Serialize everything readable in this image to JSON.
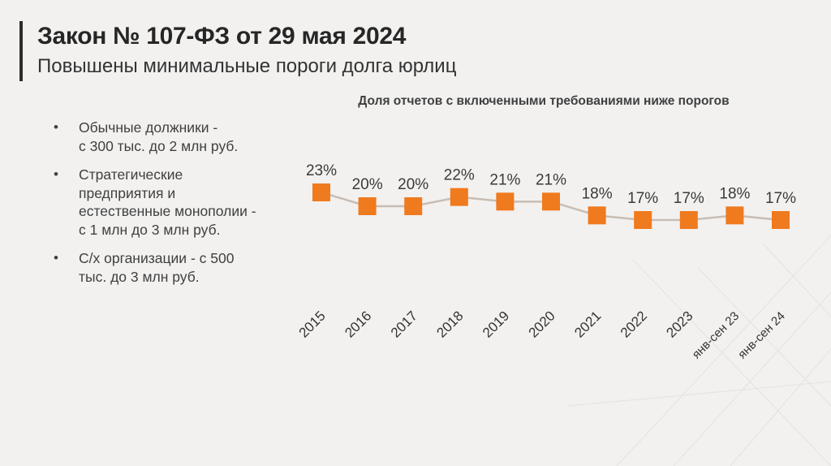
{
  "slide": {
    "title": "Закон № 107-ФЗ от 29 мая 2024",
    "subtitle": "Повышены минимальные пороги долга юрлиц"
  },
  "bullets": [
    "Обычные должники -\nс 300 тыс. до 2 млн руб.",
    "Стратегические\nпредприятия и\nестественные монополии -\nс 1 млн до 3 млн руб.",
    "С/х организации - с 500\nтыс. до 3 млн руб."
  ],
  "bullet_symbol": "•",
  "chart_data": {
    "type": "line",
    "title": "Доля отчетов с включенными требованиями ниже порогов",
    "categories": [
      "2015",
      "2016",
      "2017",
      "2018",
      "2019",
      "2020",
      "2021",
      "2022",
      "2023",
      "янв-сен 23",
      "янв-сен 24"
    ],
    "series": [
      {
        "values": [
          23,
          20,
          20,
          22,
          21,
          21,
          18,
          17,
          17,
          18,
          17
        ],
        "labels": [
          "23%",
          "20%",
          "20%",
          "22%",
          "21%",
          "21%",
          "18%",
          "17%",
          "17%",
          "18%",
          "17%"
        ]
      }
    ],
    "unit": "%",
    "marker": "square",
    "colors": {
      "marker": "#f07a1e",
      "line": "#c9bdb3"
    }
  }
}
